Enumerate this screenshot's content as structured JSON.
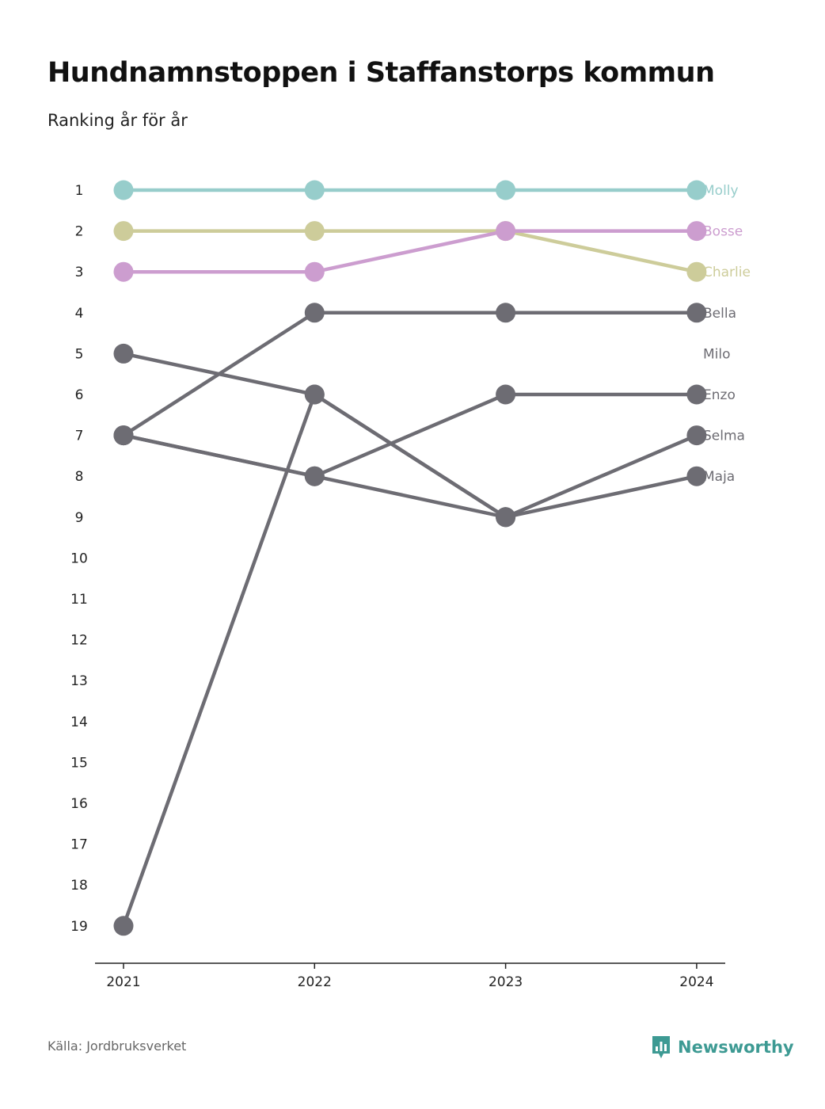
{
  "title": "Hundnamnstoppen i Staffanstorps kommun",
  "subtitle": "Ranking år för år",
  "source": "Källa: Jordbruksverket",
  "brand": "Newsworthy",
  "colors": {
    "molly": "#97cdcb",
    "charlie": "#cdcc9a",
    "bosse": "#cc9dcf",
    "other": "#6d6c73",
    "brand": "#3d9a93",
    "axis": "#222222"
  },
  "chart_data": {
    "type": "line",
    "x": [
      "2021",
      "2022",
      "2023",
      "2024"
    ],
    "ylim": [
      1,
      19
    ],
    "y_inverted": true,
    "y_ticks": [
      "1",
      "2",
      "3",
      "4",
      "5",
      "6",
      "7",
      "8",
      "9",
      "10",
      "11",
      "12",
      "13",
      "14",
      "15",
      "16",
      "17",
      "18",
      "19"
    ],
    "series": [
      {
        "name": "Molly",
        "values": [
          1,
          1,
          1,
          1
        ],
        "color_key": "molly"
      },
      {
        "name": "Charlie",
        "values": [
          2,
          2,
          2,
          3
        ],
        "color_key": "charlie"
      },
      {
        "name": "Bosse",
        "values": [
          3,
          3,
          2,
          2
        ],
        "color_key": "bosse"
      },
      {
        "name": "Bella",
        "values": [
          7,
          4,
          4,
          4
        ],
        "color_key": "other"
      },
      {
        "name": "Milo",
        "values": [
          5,
          6,
          9,
          null
        ],
        "color_key": "other"
      },
      {
        "name": "Enzo",
        "values": [
          7,
          8,
          6,
          6
        ],
        "color_key": "other"
      },
      {
        "name": "Selma",
        "values": [
          7,
          8,
          9,
          7
        ],
        "color_key": "other"
      },
      {
        "name": "Maja",
        "values": [
          19,
          6,
          9,
          8
        ],
        "color_key": "other"
      }
    ],
    "label_positions": [
      "Molly",
      "Bosse",
      "Charlie",
      "Bella",
      "Milo",
      "Enzo",
      "Selma",
      "Maja"
    ],
    "label_ranks": [
      1,
      2,
      3,
      4,
      5,
      6,
      7,
      8
    ],
    "grid": false,
    "legend": "end-of-line labels (right)"
  }
}
